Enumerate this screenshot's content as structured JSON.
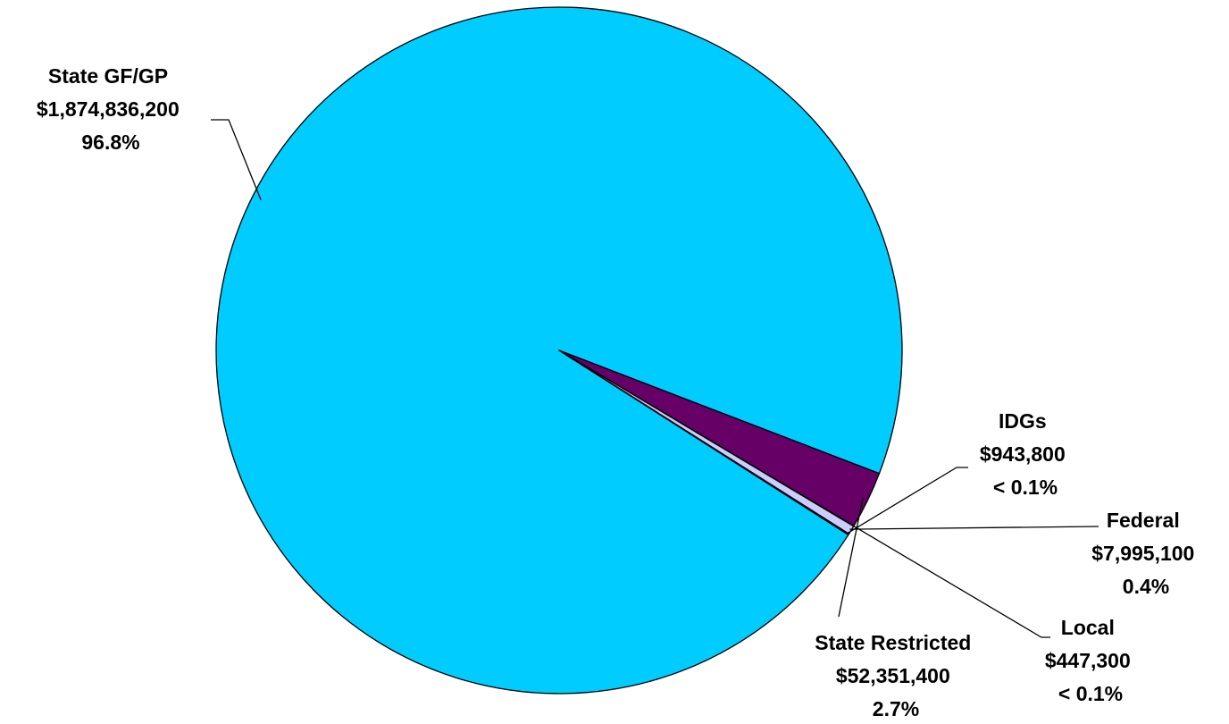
{
  "chart_data": {
    "type": "pie",
    "title": "",
    "legend": "none",
    "slices": [
      {
        "name": "State GF/GP",
        "value": 1874836200,
        "amount_label": "$1,874,836,200",
        "percent_label": "96.8%",
        "color": "#00CCFF"
      },
      {
        "name": "State Restricted",
        "value": 52351400,
        "amount_label": "$52,351,400",
        "percent_label": "2.7%",
        "color": "#660066"
      },
      {
        "name": "Local",
        "value": 447300,
        "amount_label": "$447,300",
        "percent_label": "< 0.1%",
        "color": "#00CCFF"
      },
      {
        "name": "Federal",
        "value": 7995100,
        "amount_label": "$7,995,100",
        "percent_label": "0.4%",
        "color": "#CCCCFF"
      },
      {
        "name": "IDGs",
        "value": 943800,
        "amount_label": "$943,800",
        "percent_label": "< 0.1%",
        "color": "#FFFFFF"
      }
    ]
  }
}
